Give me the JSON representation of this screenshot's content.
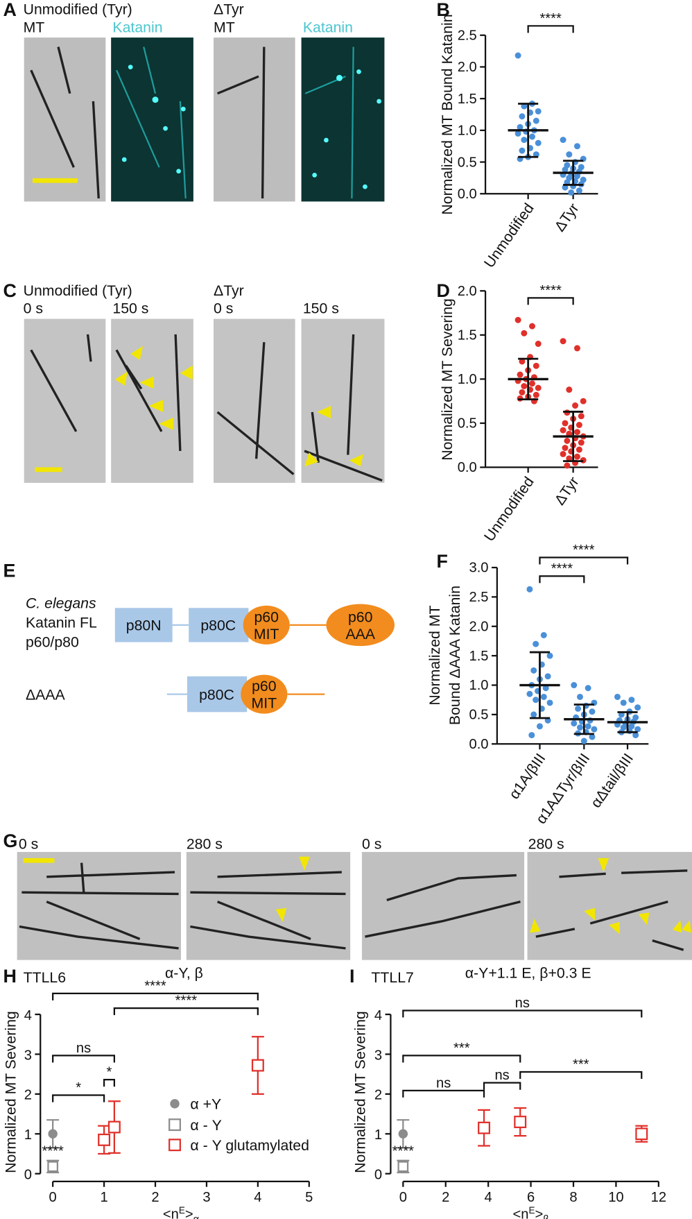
{
  "panel_letters": [
    "A",
    "B",
    "C",
    "D",
    "E",
    "F",
    "G",
    "H",
    "I"
  ],
  "image_labels": {
    "A": [
      "Unmodified (Tyr)",
      "MT",
      "Katanin",
      "ΔTyr",
      "MT",
      "Katanin"
    ],
    "C": [
      "Unmodified (Tyr)",
      "0 s",
      "150 s",
      "ΔTyr",
      "0 s",
      "150 s"
    ],
    "G": [
      "0 s",
      "280 s",
      "0 s",
      "280 s"
    ],
    "G_captions": [
      "α-Y, β",
      "α-Y+1.1 E, β+0.3 E"
    ]
  },
  "diagram": {
    "species": "C. elegans",
    "full_construct": [
      "Katanin FL",
      "p60/p80"
    ],
    "short_construct": "ΔAAA",
    "full_domains": [
      "p80N",
      "p80C",
      [
        "p60",
        "MIT"
      ],
      [
        "p60",
        "AAA"
      ]
    ],
    "short_domains": [
      "p80C",
      [
        "p60",
        "MIT"
      ]
    ]
  },
  "chart_data": [
    {
      "type": "dot",
      "y_label": "Normalized MT Bound Katanin",
      "categories": [
        "Unmodified",
        "ΔTyr"
      ],
      "color": "#4a90d9",
      "groups": [
        {
          "points": [
            2.18,
            1.42,
            1.38,
            1.3,
            1.28,
            1.22,
            1.15,
            1.1,
            1.05,
            1.0,
            0.98,
            0.95,
            0.9,
            0.85,
            0.8,
            0.72,
            0.68,
            0.62,
            0.58,
            0.55
          ],
          "mean": 1.0,
          "sd": 0.42
        },
        {
          "points": [
            0.85,
            0.75,
            0.62,
            0.55,
            0.5,
            0.45,
            0.42,
            0.4,
            0.38,
            0.35,
            0.32,
            0.3,
            0.28,
            0.25,
            0.22,
            0.2,
            0.18,
            0.15,
            0.12,
            0.1,
            0.05,
            0.02
          ],
          "mean": 0.33,
          "sd": 0.19
        }
      ],
      "ylim": [
        0,
        2.5
      ],
      "yticks": [
        {
          "value": 0,
          "label": "0.0"
        },
        0.5,
        {
          "value": 1,
          "label": "1.0"
        },
        1.5,
        {
          "value": 2,
          "label": "2.0"
        },
        2.5
      ],
      "comparisons": [
        {
          "from": 0,
          "to": 1,
          "label": "****"
        }
      ]
    },
    {
      "type": "dot",
      "y_label": "Normalized MT Severing",
      "categories": [
        "Unmodified",
        "ΔTyr"
      ],
      "color": "#e0302a",
      "groups": [
        {
          "points": [
            1.67,
            1.6,
            1.52,
            1.4,
            1.25,
            1.2,
            1.15,
            1.1,
            1.05,
            1.02,
            1.0,
            0.98,
            0.95,
            0.92,
            0.9,
            0.88,
            0.85,
            0.82,
            0.8,
            0.78,
            0.75
          ],
          "mean": 1.0,
          "sd": 0.23
        },
        {
          "points": [
            1.43,
            1.35,
            0.88,
            0.75,
            0.7,
            0.62,
            0.58,
            0.55,
            0.5,
            0.48,
            0.45,
            0.42,
            0.4,
            0.38,
            0.35,
            0.33,
            0.3,
            0.28,
            0.25,
            0.22,
            0.2,
            0.18,
            0.15,
            0.12,
            0.1,
            0.08,
            0.05,
            0.02
          ],
          "mean": 0.35,
          "sd": 0.28
        }
      ],
      "ylim": [
        0,
        2
      ],
      "yticks": [
        {
          "value": 0,
          "label": "0.0"
        },
        0.5,
        {
          "value": 1,
          "label": "1.0"
        },
        1.5,
        {
          "value": 2,
          "label": "2.0"
        }
      ],
      "comparisons": [
        {
          "from": 0,
          "to": 1,
          "label": "****"
        }
      ]
    },
    {
      "type": "dot",
      "y_label": [
        "Normalized MT",
        "Bound ΔAAA Katanin"
      ],
      "categories": [
        "α1A/βIII",
        "α1AΔTyr/βIII",
        "αΔtail/βIII"
      ],
      "color": "#4a90d9",
      "groups": [
        {
          "points": [
            2.63,
            1.85,
            1.7,
            1.5,
            1.35,
            1.25,
            1.15,
            1.1,
            1.0,
            0.95,
            0.9,
            0.85,
            0.8,
            0.75,
            0.7,
            0.6,
            0.5,
            0.4,
            0.3,
            0.15
          ],
          "mean": 1.0,
          "sd": 0.56
        },
        {
          "points": [
            1.0,
            0.95,
            0.8,
            0.7,
            0.65,
            0.6,
            0.55,
            0.5,
            0.45,
            0.4,
            0.38,
            0.35,
            0.3,
            0.28,
            0.25,
            0.2,
            0.18,
            0.12,
            0.05
          ],
          "mean": 0.42,
          "sd": 0.25
        },
        {
          "points": [
            0.8,
            0.75,
            0.7,
            0.62,
            0.55,
            0.5,
            0.45,
            0.42,
            0.4,
            0.38,
            0.35,
            0.33,
            0.3,
            0.28,
            0.25,
            0.22,
            0.2,
            0.15
          ],
          "mean": 0.37,
          "sd": 0.17
        }
      ],
      "ylim": [
        0,
        3
      ],
      "yticks": [
        {
          "value": 0,
          "label": "0.0"
        },
        0.5,
        {
          "value": 1,
          "label": "1.0"
        },
        1.5,
        {
          "value": 2,
          "label": "2.0"
        },
        2.5,
        {
          "value": 3,
          "label": "3.0"
        }
      ],
      "comparisons": [
        {
          "from": 0,
          "to": 1,
          "label": "****"
        },
        {
          "from": 0,
          "to": 2,
          "label": "****"
        }
      ]
    },
    {
      "type": "scatter",
      "title": "TTLL6",
      "y_label": "Normalized MT Severing",
      "x_label": [
        "<n",
        "E",
        ">",
        "α"
      ],
      "xlim": [
        0,
        5
      ],
      "xticks": [
        0,
        1,
        2,
        3,
        4,
        5
      ],
      "ylim": [
        0,
        4
      ],
      "yticks": [
        0,
        1,
        2,
        3,
        4
      ],
      "legend": true,
      "series": [
        {
          "name": "α +Y",
          "color": "#8c8c8c",
          "marker": "circle",
          "x": [
            0
          ],
          "values": [
            1
          ],
          "errors": [
            0.35
          ]
        },
        {
          "name": "α - Y",
          "color": "#8c8c8c",
          "marker": "square",
          "x": [
            0
          ],
          "values": [
            0.18
          ],
          "errors": [
            0.15
          ],
          "annotation": "****"
        },
        {
          "name": "α - Y glutamylated",
          "color": "#e0302a",
          "marker": "square",
          "x": [
            1,
            1.2,
            4
          ],
          "values": [
            0.85,
            1.17,
            2.72
          ],
          "errors": [
            0.35,
            0.65,
            0.72
          ]
        }
      ],
      "comparisons": [
        {
          "x1": 0,
          "x2": 4,
          "label": "****"
        },
        {
          "x1": 1.2,
          "x2": 4,
          "label": "****"
        },
        {
          "x1": 0,
          "x2": 1.2,
          "label": "ns"
        },
        {
          "x1": 0,
          "x2": 1,
          "label": "*"
        },
        {
          "x1": 1,
          "x2": 1.2,
          "label": "*"
        }
      ]
    },
    {
      "type": "scatter",
      "title": "TTLL7",
      "y_label": "Normalized MT Severing",
      "x_label": [
        "<n",
        "E",
        ">",
        "β"
      ],
      "xlim": [
        0,
        12
      ],
      "xticks": [
        0,
        2,
        4,
        6,
        8,
        10,
        12
      ],
      "ylim": [
        0,
        4
      ],
      "yticks": [
        0,
        1,
        2,
        3,
        4
      ],
      "legend": false,
      "series": [
        {
          "color": "#8c8c8c",
          "marker": "circle",
          "x": [
            0
          ],
          "values": [
            1
          ],
          "errors": [
            0.35
          ]
        },
        {
          "color": "#8c8c8c",
          "marker": "square",
          "x": [
            0
          ],
          "values": [
            0.18
          ],
          "errors": [
            0.15
          ],
          "annotation": "****"
        },
        {
          "color": "#e0302a",
          "marker": "square",
          "x": [
            3.8,
            5.5,
            11.2
          ],
          "values": [
            1.15,
            1.3,
            1.0
          ],
          "errors": [
            0.45,
            0.35,
            0.2
          ]
        }
      ],
      "comparisons": [
        {
          "x1": 0,
          "x2": 11.2,
          "label": "ns"
        },
        {
          "x1": 0,
          "x2": 5.5,
          "label": "***"
        },
        {
          "x1": 0,
          "x2": 3.8,
          "label": "ns"
        },
        {
          "x1": 3.8,
          "x2": 5.5,
          "label": "ns"
        },
        {
          "x1": 5.5,
          "x2": 11.2,
          "label": "***"
        }
      ]
    }
  ]
}
